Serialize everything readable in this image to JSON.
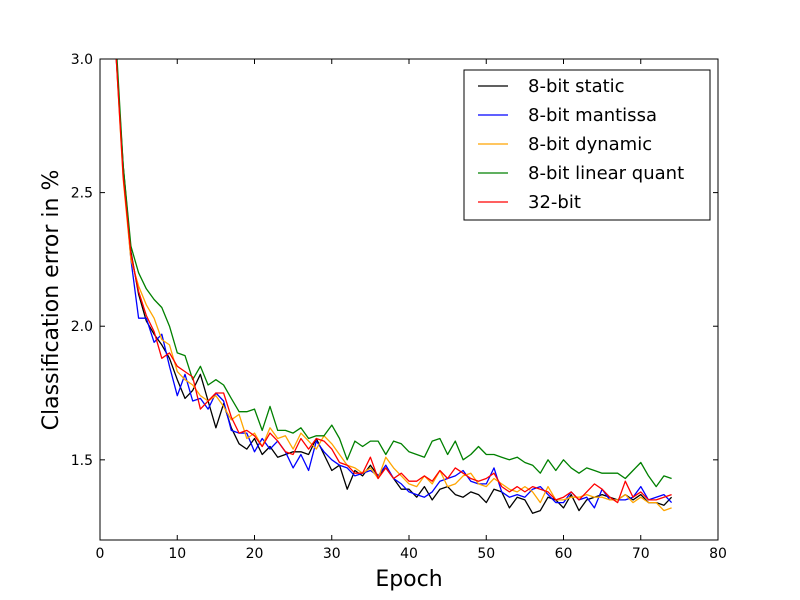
{
  "chart_data": {
    "type": "line",
    "title": "",
    "xlabel": "Epoch",
    "ylabel": "Classification error in %",
    "xlim": [
      0,
      80
    ],
    "ylim": [
      1.2,
      3.0
    ],
    "xticks": [
      "0",
      "10",
      "20",
      "30",
      "40",
      "50",
      "60",
      "70",
      "80"
    ],
    "yticks": [
      "1.5",
      "2.0",
      "2.5",
      "3.0"
    ],
    "grid": false,
    "legend_position": "top-right",
    "x": [
      1,
      2,
      3,
      4,
      5,
      6,
      7,
      8,
      9,
      10,
      11,
      12,
      13,
      14,
      15,
      16,
      17,
      18,
      19,
      20,
      21,
      22,
      23,
      24,
      25,
      26,
      27,
      28,
      29,
      30,
      31,
      32,
      33,
      34,
      35,
      36,
      37,
      38,
      39,
      40,
      41,
      42,
      43,
      44,
      45,
      46,
      47,
      48,
      49,
      50,
      51,
      52,
      53,
      54,
      55,
      56,
      57,
      58,
      59,
      60,
      61,
      62,
      63,
      64,
      65,
      66,
      67,
      68,
      69,
      70,
      71,
      72,
      73,
      74
    ],
    "series": [
      {
        "name": "8-bit static",
        "color": "#000000",
        "values": [
          3.8,
          3.05,
          2.6,
          2.28,
          2.12,
          2.02,
          1.97,
          1.93,
          1.88,
          1.8,
          1.73,
          1.76,
          1.82,
          1.72,
          1.62,
          1.71,
          1.62,
          1.56,
          1.54,
          1.58,
          1.52,
          1.55,
          1.51,
          1.52,
          1.53,
          1.53,
          1.52,
          1.58,
          1.52,
          1.46,
          1.48,
          1.39,
          1.46,
          1.44,
          1.48,
          1.44,
          1.47,
          1.43,
          1.39,
          1.39,
          1.36,
          1.4,
          1.35,
          1.39,
          1.4,
          1.37,
          1.36,
          1.38,
          1.37,
          1.34,
          1.39,
          1.38,
          1.32,
          1.36,
          1.35,
          1.3,
          1.31,
          1.36,
          1.35,
          1.32,
          1.37,
          1.31,
          1.35,
          1.36,
          1.37,
          1.36,
          1.35,
          1.37,
          1.35,
          1.37,
          1.34,
          1.34,
          1.33,
          1.36
        ]
      },
      {
        "name": "8-bit mantissa",
        "color": "#0000ff",
        "values": [
          3.8,
          3.05,
          2.58,
          2.25,
          2.03,
          2.03,
          1.94,
          1.97,
          1.85,
          1.74,
          1.82,
          1.72,
          1.73,
          1.69,
          1.75,
          1.72,
          1.61,
          1.6,
          1.6,
          1.53,
          1.58,
          1.54,
          1.57,
          1.53,
          1.47,
          1.52,
          1.46,
          1.57,
          1.53,
          1.5,
          1.48,
          1.47,
          1.44,
          1.45,
          1.46,
          1.44,
          1.48,
          1.43,
          1.41,
          1.38,
          1.37,
          1.36,
          1.38,
          1.42,
          1.43,
          1.44,
          1.46,
          1.42,
          1.41,
          1.41,
          1.47,
          1.38,
          1.36,
          1.37,
          1.36,
          1.39,
          1.4,
          1.37,
          1.34,
          1.34,
          1.38,
          1.35,
          1.36,
          1.32,
          1.39,
          1.35,
          1.35,
          1.35,
          1.36,
          1.4,
          1.35,
          1.36,
          1.37,
          1.34
        ]
      },
      {
        "name": "8-bit dynamic",
        "color": "#ffa500",
        "values": [
          3.8,
          3.05,
          2.55,
          2.25,
          2.15,
          2.08,
          2.03,
          1.95,
          1.93,
          1.83,
          1.8,
          1.78,
          1.74,
          1.72,
          1.74,
          1.7,
          1.65,
          1.67,
          1.58,
          1.6,
          1.55,
          1.62,
          1.58,
          1.59,
          1.54,
          1.6,
          1.57,
          1.54,
          1.59,
          1.56,
          1.52,
          1.48,
          1.47,
          1.45,
          1.47,
          1.43,
          1.51,
          1.47,
          1.44,
          1.41,
          1.4,
          1.44,
          1.41,
          1.46,
          1.4,
          1.41,
          1.44,
          1.45,
          1.41,
          1.4,
          1.43,
          1.41,
          1.39,
          1.38,
          1.4,
          1.38,
          1.34,
          1.4,
          1.35,
          1.35,
          1.36,
          1.36,
          1.37,
          1.36,
          1.36,
          1.35,
          1.35,
          1.37,
          1.34,
          1.36,
          1.34,
          1.34,
          1.31,
          1.32
        ]
      },
      {
        "name": "8-bit linear quant",
        "color": "#008000",
        "values": [
          3.8,
          3.1,
          2.6,
          2.3,
          2.2,
          2.14,
          2.1,
          2.07,
          2.0,
          1.9,
          1.89,
          1.8,
          1.85,
          1.78,
          1.8,
          1.78,
          1.73,
          1.68,
          1.68,
          1.69,
          1.61,
          1.7,
          1.61,
          1.61,
          1.6,
          1.62,
          1.58,
          1.59,
          1.59,
          1.63,
          1.58,
          1.5,
          1.57,
          1.55,
          1.57,
          1.57,
          1.52,
          1.57,
          1.56,
          1.53,
          1.52,
          1.51,
          1.57,
          1.58,
          1.52,
          1.57,
          1.5,
          1.52,
          1.55,
          1.52,
          1.52,
          1.51,
          1.5,
          1.51,
          1.49,
          1.48,
          1.45,
          1.5,
          1.46,
          1.5,
          1.47,
          1.45,
          1.47,
          1.46,
          1.45,
          1.45,
          1.45,
          1.43,
          1.46,
          1.49,
          1.44,
          1.4,
          1.44,
          1.43
        ]
      },
      {
        "name": "32-bit",
        "color": "#ff0000",
        "values": [
          3.8,
          3.05,
          2.56,
          2.27,
          2.13,
          2.04,
          1.98,
          1.88,
          1.9,
          1.85,
          1.83,
          1.81,
          1.69,
          1.72,
          1.75,
          1.75,
          1.66,
          1.6,
          1.61,
          1.59,
          1.55,
          1.6,
          1.57,
          1.53,
          1.52,
          1.58,
          1.54,
          1.58,
          1.57,
          1.54,
          1.49,
          1.48,
          1.45,
          1.45,
          1.51,
          1.43,
          1.47,
          1.43,
          1.45,
          1.42,
          1.42,
          1.44,
          1.42,
          1.46,
          1.43,
          1.47,
          1.45,
          1.43,
          1.42,
          1.43,
          1.45,
          1.4,
          1.38,
          1.4,
          1.38,
          1.4,
          1.39,
          1.38,
          1.35,
          1.36,
          1.38,
          1.35,
          1.38,
          1.41,
          1.39,
          1.36,
          1.34,
          1.42,
          1.36,
          1.38,
          1.35,
          1.35,
          1.36,
          1.37
        ]
      }
    ]
  }
}
